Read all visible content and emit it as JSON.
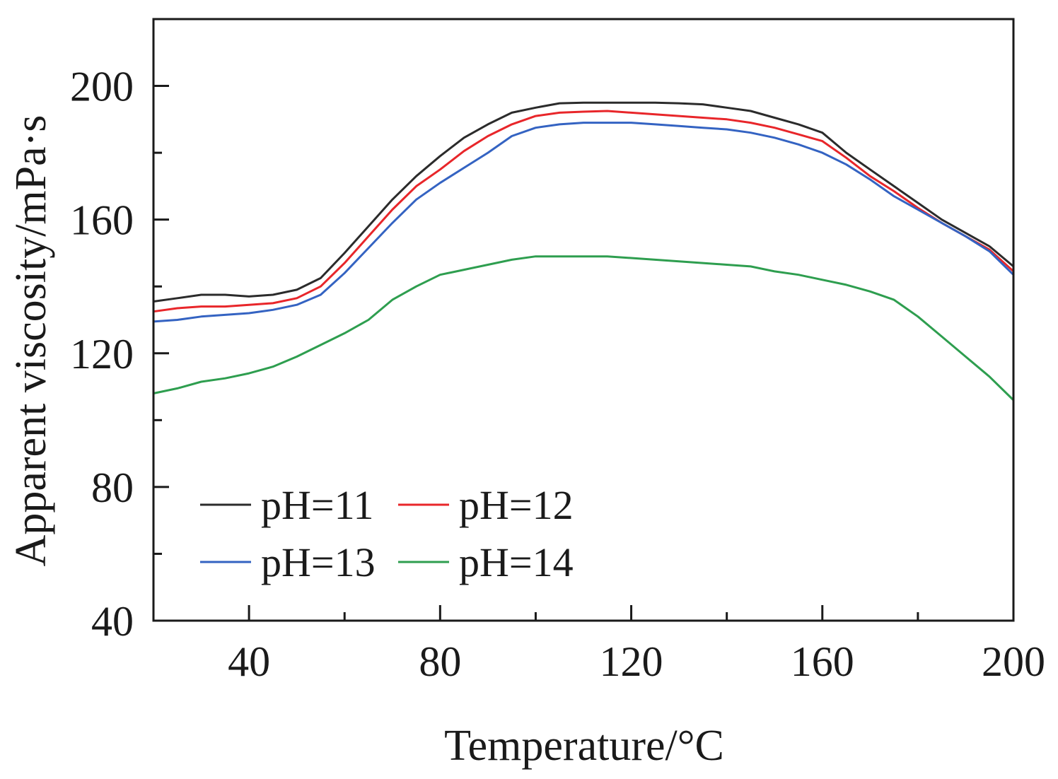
{
  "chart_data": {
    "type": "line",
    "title": "",
    "xlabel": "Temperature/°C",
    "ylabel": "Apparent viscosity/mPa·s",
    "xlim": [
      20,
      200
    ],
    "ylim": [
      40,
      220
    ],
    "xticks": [
      40,
      80,
      120,
      160,
      200
    ],
    "xtick_labels": [
      "40",
      "80",
      "120",
      "160",
      "200"
    ],
    "xminor": [
      20,
      60,
      100,
      140,
      180
    ],
    "yticks": [
      40,
      80,
      120,
      160,
      200
    ],
    "ytick_labels": [
      "40",
      "80",
      "120",
      "160",
      "200"
    ],
    "yminor": [
      60,
      100,
      140,
      180
    ],
    "grid": false,
    "legend_position": "lower-left",
    "series": [
      {
        "name": "pH=11",
        "color": "#2b2b2b",
        "x": [
          20,
          25,
          30,
          35,
          40,
          45,
          50,
          55,
          60,
          65,
          70,
          75,
          80,
          85,
          90,
          95,
          100,
          105,
          110,
          115,
          120,
          125,
          130,
          135,
          140,
          145,
          150,
          155,
          160,
          165,
          170,
          175,
          180,
          185,
          190,
          195,
          200
        ],
        "y": [
          135.5,
          136.5,
          137.5,
          137.5,
          137,
          137.5,
          139,
          142.5,
          150,
          158,
          166,
          173,
          179,
          184.5,
          188.5,
          192,
          193.5,
          194.8,
          195,
          195,
          195,
          195,
          194.8,
          194.5,
          193.5,
          192.5,
          190.5,
          188.5,
          186,
          180,
          175,
          170,
          165,
          160,
          156,
          152,
          146
        ]
      },
      {
        "name": "pH=12",
        "color": "#e8262a",
        "x": [
          20,
          25,
          30,
          35,
          40,
          45,
          50,
          55,
          60,
          65,
          70,
          75,
          80,
          85,
          90,
          95,
          100,
          105,
          110,
          115,
          120,
          125,
          130,
          135,
          140,
          145,
          150,
          155,
          160,
          165,
          170,
          175,
          180,
          185,
          190,
          195,
          200
        ],
        "y": [
          132.5,
          133.5,
          134,
          134,
          134.5,
          135,
          136.5,
          140,
          147,
          155,
          163,
          170,
          175,
          180.5,
          185,
          188.5,
          191,
          192,
          192.3,
          192.5,
          192,
          191.5,
          191,
          190.5,
          190,
          189,
          187.5,
          185.5,
          183.5,
          178.5,
          173,
          168.5,
          163.5,
          159,
          155,
          151,
          144.5
        ]
      },
      {
        "name": "pH=13",
        "color": "#3463c2",
        "x": [
          20,
          25,
          30,
          35,
          40,
          45,
          50,
          55,
          60,
          65,
          70,
          75,
          80,
          85,
          90,
          95,
          100,
          105,
          110,
          115,
          120,
          125,
          130,
          135,
          140,
          145,
          150,
          155,
          160,
          165,
          170,
          175,
          180,
          185,
          190,
          195,
          200
        ],
        "y": [
          129.5,
          130,
          131,
          131.5,
          132,
          133,
          134.5,
          137.5,
          144,
          151.5,
          159,
          166,
          171,
          175.5,
          180,
          185,
          187.5,
          188.5,
          189,
          189,
          189,
          188.5,
          188,
          187.5,
          187,
          186,
          184.5,
          182.5,
          180,
          176.5,
          172,
          167,
          163,
          159,
          155,
          150.5,
          143.5
        ]
      },
      {
        "name": "pH=14",
        "color": "#2e9e4f",
        "x": [
          20,
          25,
          30,
          35,
          40,
          45,
          50,
          55,
          60,
          65,
          70,
          75,
          80,
          85,
          90,
          95,
          100,
          105,
          110,
          115,
          120,
          125,
          130,
          135,
          140,
          145,
          150,
          155,
          160,
          165,
          170,
          175,
          180,
          185,
          190,
          195,
          200
        ],
        "y": [
          108,
          109.5,
          111.5,
          112.5,
          114,
          116,
          119,
          122.5,
          126,
          130,
          136,
          140,
          143.5,
          145,
          146.5,
          148,
          149,
          149,
          149,
          149,
          148.5,
          148,
          147.5,
          147,
          146.5,
          146,
          144.5,
          143.5,
          142,
          140.5,
          138.5,
          136,
          131,
          125,
          119,
          113,
          106
        ]
      }
    ]
  }
}
